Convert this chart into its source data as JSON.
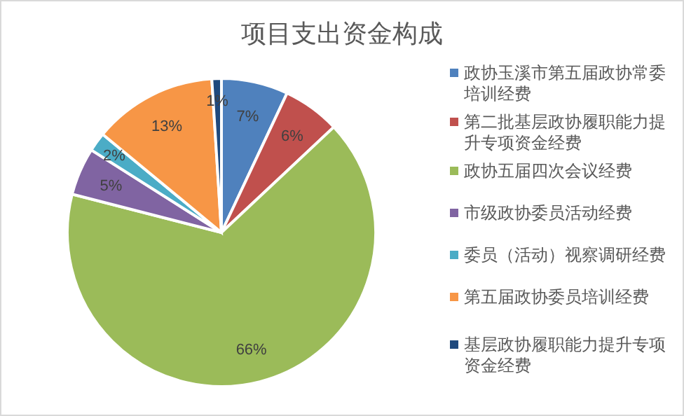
{
  "chart_data": {
    "type": "pie",
    "title": "项目支出资金构成",
    "categories": [
      "政协玉溪市第五届政协常委培训经费",
      "第二批基层政协履职能力提升专项资金经费",
      "政协五届四次会议经费",
      "市级政协委员活动经费",
      "委员（活动）视察调研经费",
      "第五届政协委员培训经费",
      "基层政协履职能力提升专项资金经费"
    ],
    "values": [
      7,
      6,
      66,
      5,
      2,
      13,
      1
    ],
    "colors": [
      "#4f81bd",
      "#c0504d",
      "#9bbb59",
      "#8064a2",
      "#4bacc6",
      "#f79646",
      "#1f497d"
    ],
    "value_labels": [
      "7%",
      "6%",
      "66%",
      "5%",
      "2%",
      "13%",
      "1%"
    ],
    "legend": "right"
  }
}
